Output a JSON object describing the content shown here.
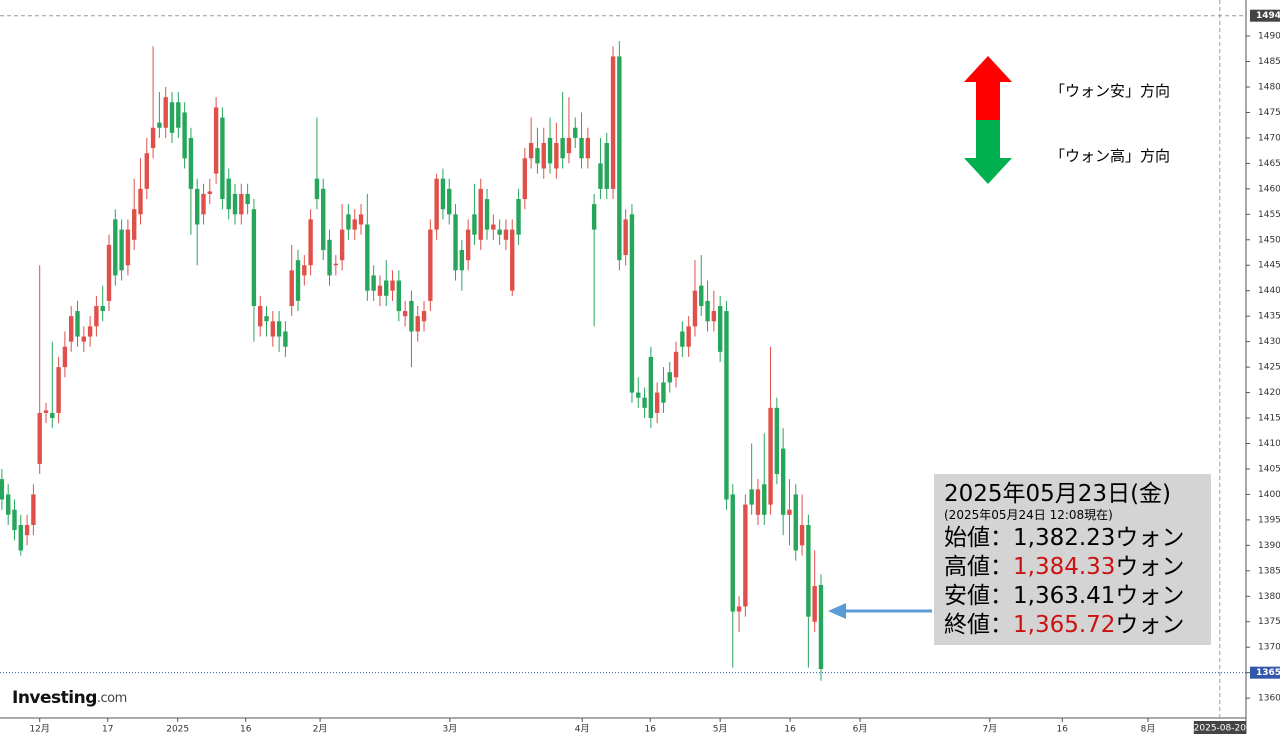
{
  "chart_data": {
    "type": "candlestick",
    "xlim": [
      -0.3,
      197.3
    ],
    "xticks": [
      {
        "value": 6.0,
        "label": "12月"
      },
      {
        "value": 16.8,
        "label": "17"
      },
      {
        "value": 27.9,
        "label": "2025"
      },
      {
        "value": 38.7,
        "label": "16"
      },
      {
        "value": 50.5,
        "label": "2月"
      },
      {
        "value": 71.1,
        "label": "3月"
      },
      {
        "value": 92.1,
        "label": "4月"
      },
      {
        "value": 102.9,
        "label": "16"
      },
      {
        "value": 114.0,
        "label": "5月"
      },
      {
        "value": 125.1,
        "label": "16"
      },
      {
        "value": 136.2,
        "label": "6月"
      },
      {
        "value": 156.8,
        "label": "7月"
      },
      {
        "value": 168.3,
        "label": "16"
      },
      {
        "value": 181.9,
        "label": "8月"
      }
    ],
    "cursor_x": {
      "value": 193.3,
      "label": "2025-08-20"
    },
    "ylim": [
      1356.1,
      1496.1
    ],
    "yticks": [
      1360,
      1365,
      1370,
      1375,
      1380,
      1385,
      1390,
      1395,
      1400,
      1405,
      1410,
      1415,
      1420,
      1425,
      1430,
      1435,
      1440,
      1445,
      1450,
      1455,
      1460,
      1465,
      1470,
      1475,
      1480,
      1485,
      1490
    ],
    "high_line": 1494,
    "last_price": 1365,
    "up_color": "#e0504a",
    "down_color": "#26a65b",
    "open": [
      1403,
      1400,
      1397,
      1394,
      1392,
      1394,
      1406,
      1416,
      1416,
      1416,
      1425,
      1430,
      1436,
      1430,
      1431,
      1433,
      1437,
      1438,
      1454,
      1452,
      1445,
      1450,
      1455,
      1460,
      1468,
      1473,
      1472,
      1477,
      1477,
      1475,
      1470,
      1460,
      1455,
      1459,
      1463,
      1474,
      1462,
      1459,
      1455,
      1459,
      1456,
      1433,
      1435,
      1431,
      1434,
      1432,
      1437,
      1446,
      1443,
      1445,
      1462,
      1460,
      1450,
      1445,
      1446,
      1455,
      1452,
      1453,
      1453,
      1443,
      1439,
      1442,
      1440,
      1442,
      1435,
      1438,
      1432,
      1434,
      1438,
      1452,
      1462,
      1460,
      1455,
      1448,
      1446,
      1455,
      1450,
      1458,
      1452,
      1452,
      1450,
      1440,
      1458,
      1458,
      1466,
      1468,
      1464,
      1470,
      1464,
      1470,
      1467,
      1472,
      1470,
      1466,
      1457,
      1465,
      1469,
      1460,
      1486,
      1447,
      1455,
      1420,
      1419,
      1427,
      1416,
      1422,
      1424,
      1423,
      1432,
      1429,
      1433,
      1441,
      1438,
      1434,
      1437,
      1436,
      1400,
      1377,
      1378,
      1401,
      1396,
      1402,
      1398,
      1417,
      1409,
      1396,
      1400,
      1390,
      1394,
      1375,
      1382.23
    ],
    "high": [
      1405,
      1402,
      1399,
      1396,
      1396,
      1402,
      1445,
      1418,
      1430,
      1427,
      1432,
      1437,
      1438,
      1433,
      1435,
      1439,
      1441,
      1451,
      1456,
      1454,
      1454,
      1462,
      1466,
      1470,
      1488,
      1479,
      1480,
      1479,
      1479,
      1477,
      1472,
      1462,
      1461,
      1462,
      1478,
      1476,
      1464,
      1461,
      1461,
      1461,
      1458,
      1439,
      1437,
      1436,
      1436,
      1434,
      1449,
      1448,
      1447,
      1456,
      1474,
      1462,
      1452,
      1447,
      1457,
      1457,
      1456,
      1457,
      1459,
      1445,
      1443,
      1446,
      1444,
      1444,
      1438,
      1440,
      1437,
      1438,
      1454,
      1463,
      1464,
      1462,
      1457,
      1450,
      1454,
      1461,
      1462,
      1460,
      1455,
      1454,
      1454,
      1454,
      1460,
      1468,
      1474,
      1472,
      1472,
      1474,
      1473,
      1479,
      1478,
      1474,
      1475,
      1472,
      1459,
      1470,
      1471,
      1488,
      1489,
      1456,
      1457,
      1423,
      1421,
      1429,
      1422,
      1425,
      1426,
      1430,
      1434,
      1435,
      1446,
      1447,
      1442,
      1440,
      1439,
      1438,
      1402,
      1380,
      1400,
      1410,
      1403,
      1412,
      1429,
      1419,
      1413,
      1403,
      1402,
      1400,
      1396,
      1389,
      1384.33
    ],
    "low": [
      1397,
      1394,
      1391,
      1388,
      1390,
      1392,
      1404,
      1414,
      1413,
      1414,
      1423,
      1428,
      1429,
      1428,
      1429,
      1431,
      1434,
      1436,
      1441,
      1442,
      1443,
      1448,
      1453,
      1458,
      1466,
      1470,
      1470,
      1469,
      1470,
      1464,
      1451,
      1445,
      1453,
      1457,
      1461,
      1456,
      1454,
      1453,
      1453,
      1455,
      1430,
      1431,
      1431,
      1429,
      1428,
      1427,
      1435,
      1436,
      1441,
      1443,
      1456,
      1446,
      1441,
      1443,
      1444,
      1450,
      1450,
      1451,
      1438,
      1438,
      1437,
      1437,
      1438,
      1434,
      1433,
      1425,
      1430,
      1432,
      1436,
      1450,
      1454,
      1453,
      1442,
      1440,
      1444,
      1449,
      1448,
      1450,
      1450,
      1449,
      1448,
      1439,
      1449,
      1456,
      1464,
      1463,
      1462,
      1463,
      1462,
      1464,
      1465,
      1468,
      1464,
      1464,
      1433,
      1458,
      1458,
      1458,
      1444,
      1445,
      1418,
      1417,
      1415,
      1413,
      1414,
      1416,
      1420,
      1421,
      1427,
      1427,
      1431,
      1435,
      1432,
      1432,
      1426,
      1397,
      1366,
      1373,
      1376,
      1396,
      1394,
      1394,
      1396,
      1402,
      1392,
      1390,
      1387,
      1388,
      1366,
      1373,
      1363.41
    ],
    "close": [
      1399,
      1396,
      1393,
      1389,
      1394,
      1400,
      1416,
      1416.5,
      1415,
      1425,
      1429,
      1435,
      1431,
      1431,
      1433,
      1437,
      1436,
      1449,
      1443,
      1444,
      1452,
      1456,
      1460,
      1467,
      1472,
      1472,
      1478,
      1471,
      1472,
      1466,
      1460,
      1453,
      1459,
      1459.5,
      1476,
      1458,
      1456,
      1455,
      1459,
      1457,
      1437,
      1437,
      1434,
      1434,
      1431,
      1429,
      1444,
      1438,
      1445,
      1454,
      1458,
      1448,
      1443,
      1445.3,
      1452,
      1452,
      1454,
      1455,
      1440,
      1440,
      1441,
      1439,
      1442,
      1436,
      1436,
      1432,
      1435,
      1436,
      1452,
      1462,
      1456,
      1455,
      1444,
      1444,
      1452,
      1451,
      1460,
      1452,
      1453,
      1451,
      1452,
      1452,
      1451,
      1466,
      1469,
      1465,
      1469,
      1465,
      1469,
      1466,
      1470,
      1470,
      1466,
      1470,
      1452,
      1460,
      1460,
      1486,
      1446,
      1454,
      1420,
      1419,
      1417,
      1415,
      1420,
      1418,
      1422,
      1428,
      1429,
      1433,
      1440,
      1437,
      1434,
      1436,
      1428,
      1399,
      1377,
      1378,
      1398,
      1398,
      1401,
      1396,
      1417,
      1404,
      1396,
      1397,
      1389,
      1394,
      1376,
      1382,
      1365.72
    ]
  },
  "legend_arrows": {
    "up": "「ウォン安」方向",
    "down": "「ウォン高」方向"
  },
  "annotation": {
    "title": "2025年05月23日(金)",
    "subtitle": "(2025年05月24日 12:08現在)",
    "rows": [
      {
        "label": "始値：",
        "value": "1,382.23",
        "unit": "ウォン",
        "highlight": false
      },
      {
        "label": "高値：",
        "value": "1,384.33",
        "unit": "ウォン",
        "highlight": true
      },
      {
        "label": "安値：",
        "value": "1,363.41",
        "unit": "ウォン",
        "highlight": false
      },
      {
        "label": "終値：",
        "value": "1,365.72",
        "unit": "ウォン",
        "highlight": true
      }
    ]
  },
  "logo": {
    "brand": "Investing",
    "suffix": ".com"
  }
}
